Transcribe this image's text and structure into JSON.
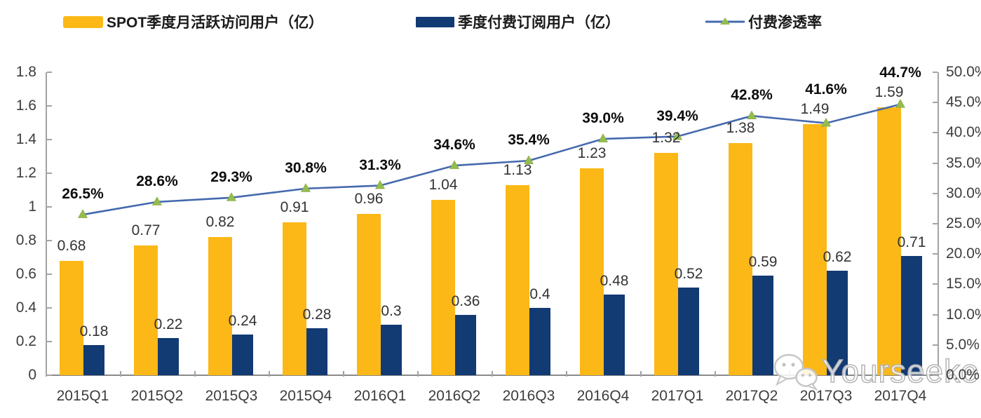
{
  "chart_data": {
    "type": "bar+line",
    "title": "",
    "categories": [
      "2015Q1",
      "2015Q2",
      "2015Q3",
      "2015Q4",
      "2016Q1",
      "2016Q2",
      "2016Q3",
      "2016Q4",
      "2017Q1",
      "2017Q2",
      "2017Q3",
      "2017Q4"
    ],
    "series": [
      {
        "name": "SPOT季度月活跃访问用户（亿）",
        "type": "bar",
        "color": "#FBB816",
        "values": [
          0.68,
          0.77,
          0.82,
          0.91,
          0.96,
          1.04,
          1.13,
          1.23,
          1.32,
          1.38,
          1.49,
          1.59
        ],
        "labels": [
          "0.68",
          "0.77",
          "0.82",
          "0.91",
          "0.96",
          "1.04",
          "1.13",
          "1.23",
          "1.32",
          "1.38",
          "1.49",
          "1.59"
        ]
      },
      {
        "name": "季度付费订阅用户（亿）",
        "type": "bar",
        "color": "#123A73",
        "values": [
          0.18,
          0.22,
          0.24,
          0.28,
          0.3,
          0.36,
          0.4,
          0.48,
          0.52,
          0.59,
          0.62,
          0.71
        ],
        "labels": [
          "0.18",
          "0.22",
          "0.24",
          "0.28",
          "0.3",
          "0.36",
          "0.4",
          "0.48",
          "0.52",
          "0.59",
          "0.62",
          "0.71"
        ]
      },
      {
        "name": "付费渗透率",
        "type": "line",
        "color": "#4569AE",
        "marker": "triangle",
        "marker_color": "#95BC4E",
        "values": [
          26.5,
          28.6,
          29.3,
          30.8,
          31.3,
          34.6,
          35.4,
          39.0,
          39.4,
          42.8,
          41.6,
          44.7
        ],
        "labels": [
          "26.5%",
          "28.6%",
          "29.3%",
          "30.8%",
          "31.3%",
          "34.6%",
          "35.4%",
          "39.0%",
          "39.4%",
          "42.8%",
          "41.6%",
          "44.7%"
        ]
      }
    ],
    "left_axis": {
      "min": 0,
      "max": 1.8,
      "step": 0.2,
      "ticks": [
        "0",
        "0.2",
        "0.4",
        "0.6",
        "0.8",
        "1",
        "1.2",
        "1.4",
        "1.6",
        "1.8"
      ]
    },
    "right_axis": {
      "min": 0,
      "max": 50,
      "step": 5,
      "ticks": [
        "0.0%",
        "5.0%",
        "10.0%",
        "15.0%",
        "20.0%",
        "25.0%",
        "30.0%",
        "35.0%",
        "40.0%",
        "45.0%",
        "50.0%"
      ]
    },
    "grid": false,
    "legend_position": "top"
  },
  "watermark": {
    "text": "Yourseeker",
    "icon": "wechat-icon"
  }
}
